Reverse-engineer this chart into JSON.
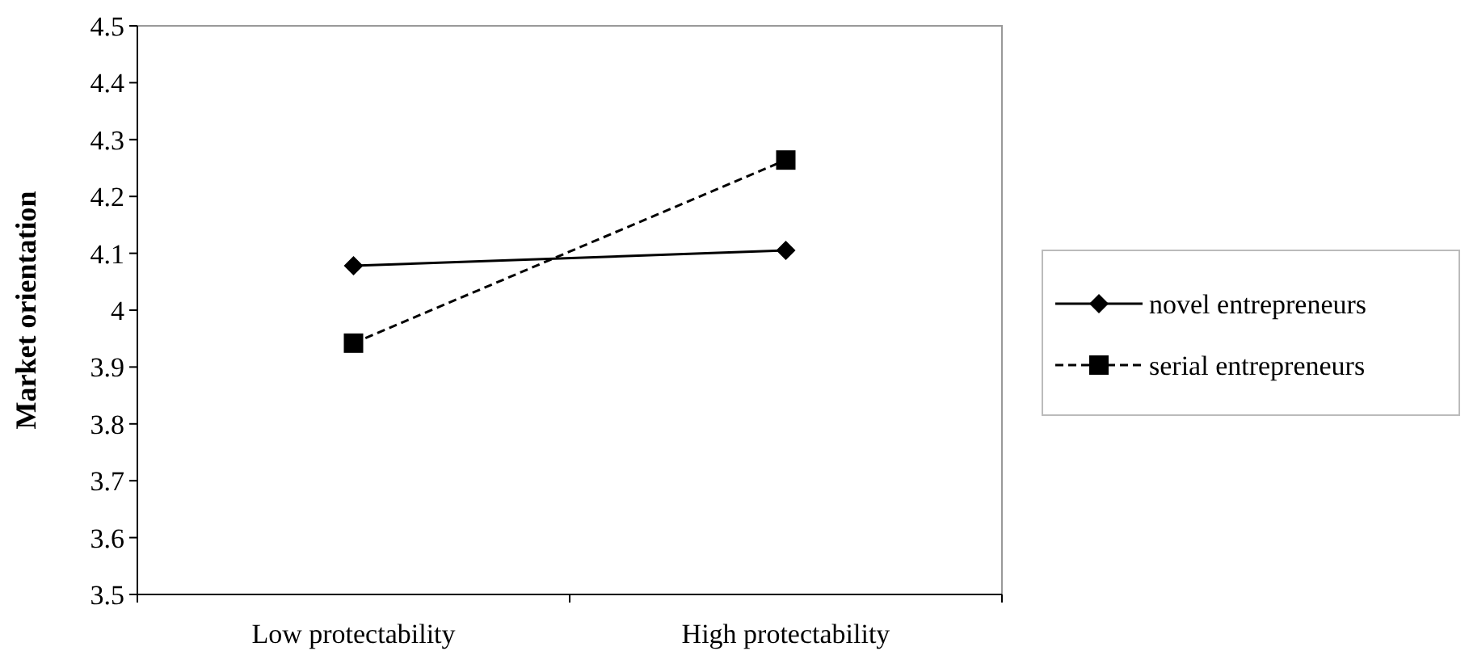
{
  "chart_data": {
    "type": "line",
    "ylabel": "Market orientation",
    "categories": [
      "Low protectability",
      "High protectability"
    ],
    "series": [
      {
        "name": "novel entrepreneurs",
        "color": "#000000",
        "values": [
          4.078,
          4.105
        ],
        "marker": "diamond",
        "line_style": "solid"
      },
      {
        "name": "serial entrepreneurs",
        "color": "#000000",
        "values": [
          3.942,
          4.264
        ],
        "marker": "square",
        "line_style": "dashed"
      }
    ],
    "ylim": [
      3.5,
      4.5
    ],
    "yticks": [
      3.5,
      3.6,
      3.7,
      3.8,
      3.9,
      {
        "value": 4,
        "label": "4"
      },
      4.1,
      4.2,
      4.3,
      4.4,
      4.5
    ],
    "grid": false,
    "legend": "right"
  }
}
